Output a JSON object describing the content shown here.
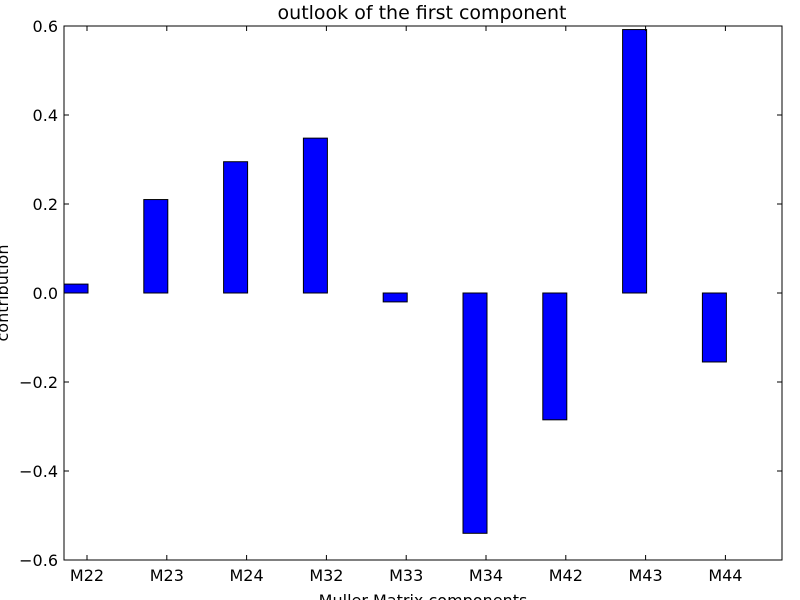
{
  "chart_data": {
    "type": "bar",
    "title": "outlook of the first component",
    "xlabel": "Muller Matrix components",
    "ylabel": "contribution",
    "categories": [
      "M22",
      "M23",
      "M24",
      "M32",
      "M33",
      "M34",
      "M42",
      "M43",
      "M44"
    ],
    "values": [
      0.02,
      0.21,
      0.295,
      0.348,
      -0.02,
      -0.54,
      -0.285,
      0.592,
      -0.155
    ],
    "ylim": [
      -0.6,
      0.6
    ],
    "yticks": [
      -0.6,
      -0.4,
      -0.2,
      0.0,
      0.2,
      0.4,
      0.6
    ],
    "ytick_labels": [
      "−0.6",
      "−0.4",
      "−0.2",
      "0.0",
      "0.2",
      "0.4",
      "0.6"
    ],
    "bar_color": "#0000ff",
    "edge_color": "#000000",
    "grid": false,
    "legend": "none"
  }
}
